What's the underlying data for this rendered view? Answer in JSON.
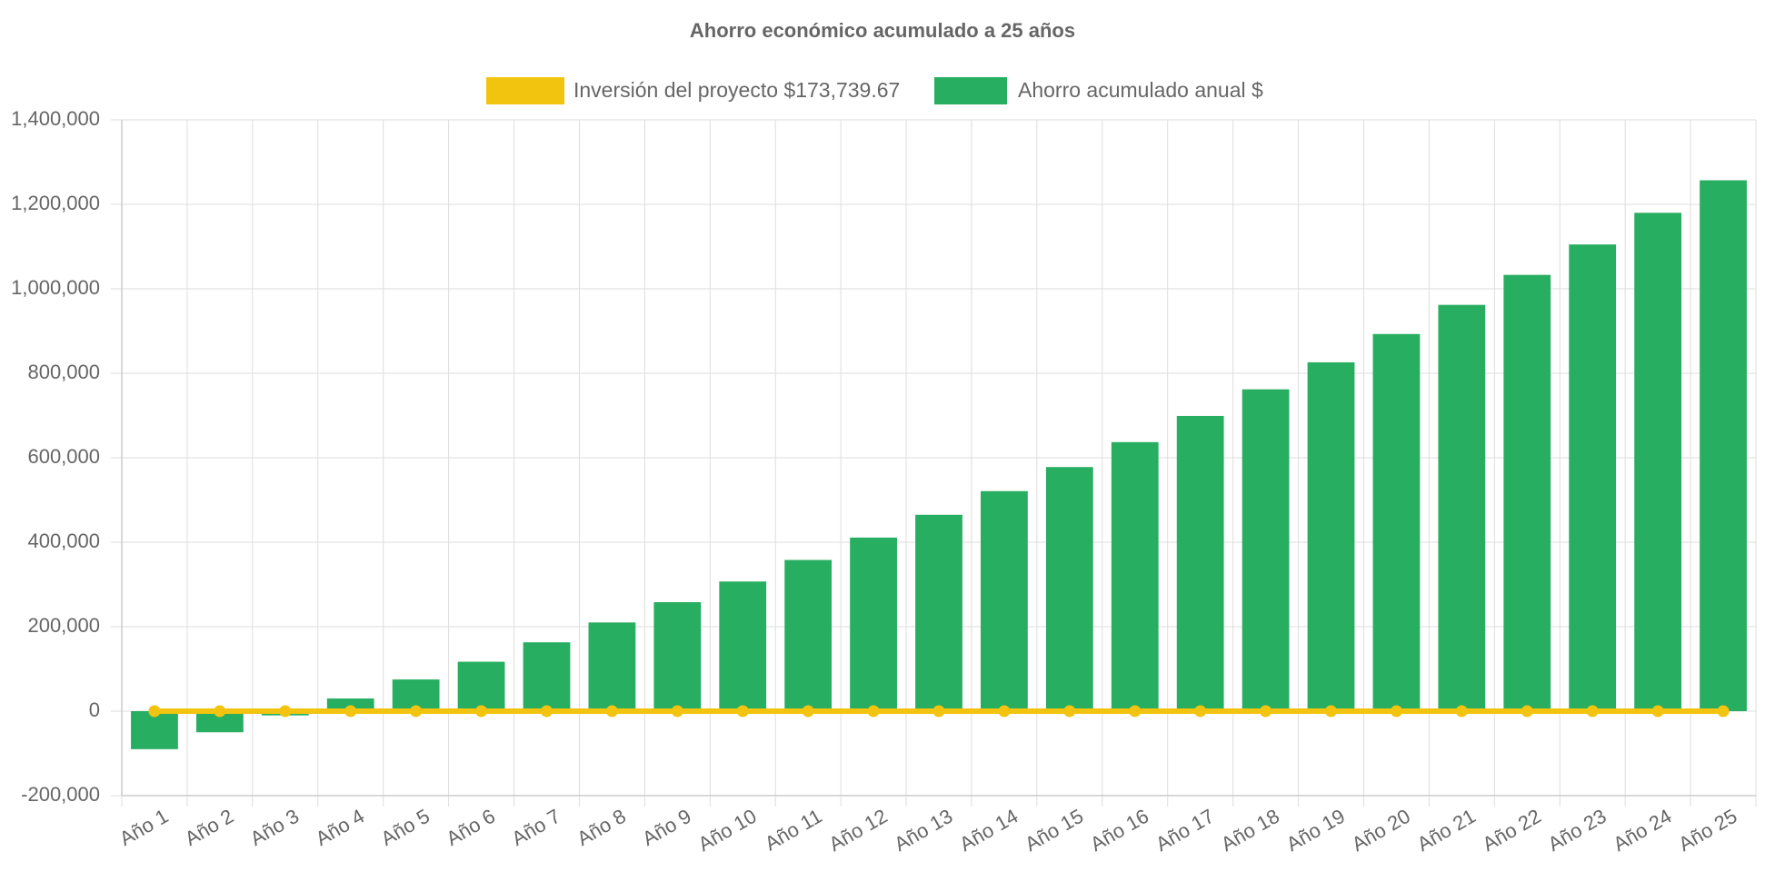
{
  "chart_data": {
    "type": "bar",
    "title": "Ahorro económico acumulado a 25 años",
    "categories": [
      "Año 1",
      "Año 2",
      "Año 3",
      "Año 4",
      "Año 5",
      "Año 6",
      "Año 7",
      "Año 8",
      "Año 9",
      "Año 10",
      "Año 11",
      "Año 12",
      "Año 13",
      "Año 14",
      "Año 15",
      "Año 16",
      "Año 17",
      "Año 18",
      "Año 19",
      "Año 20",
      "Año 21",
      "Año 22",
      "Año 23",
      "Año 24",
      "Año 25"
    ],
    "series": [
      {
        "name": "Inversión del proyecto $173,739.67",
        "type": "line",
        "color": "#f2c40f",
        "values": [
          0,
          0,
          0,
          0,
          0,
          0,
          0,
          0,
          0,
          0,
          0,
          0,
          0,
          0,
          0,
          0,
          0,
          0,
          0,
          0,
          0,
          0,
          0,
          0,
          0
        ]
      },
      {
        "name": "Ahorro acumulado anual $",
        "type": "bar",
        "color": "#27ae60",
        "values": [
          -90000,
          -50000,
          -10000,
          30000,
          75000,
          117000,
          163000,
          210000,
          258000,
          307000,
          358000,
          411000,
          465000,
          521000,
          578000,
          637000,
          699000,
          762000,
          826000,
          893000,
          962000,
          1033000,
          1105000,
          1180000,
          1257000
        ]
      }
    ],
    "ylim": [
      -200000,
      1400000
    ],
    "yticks": [
      {
        "value": -200000,
        "label": "-200,000"
      },
      0,
      {
        "value": 200000,
        "label": "200,000"
      },
      {
        "value": 400000,
        "label": "400,000"
      },
      {
        "value": 600000,
        "label": "600,000"
      },
      {
        "value": 800000,
        "label": "800,000"
      },
      {
        "value": 1000000,
        "label": "1,000,000"
      },
      {
        "value": 1200000,
        "label": "1,200,000"
      },
      {
        "value": 1400000,
        "label": "1,400,000"
      }
    ],
    "grid": true
  }
}
